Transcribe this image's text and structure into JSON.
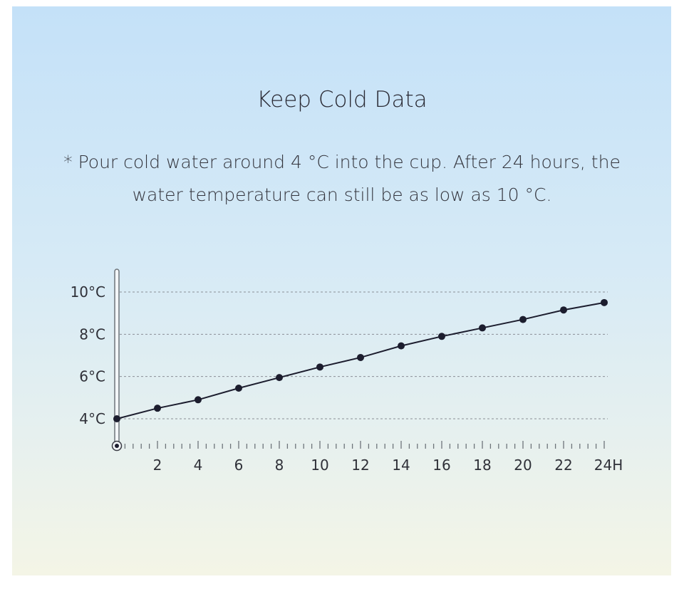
{
  "title": "Keep Cold Data",
  "note": "* Pour cold water around 4 °C into the cup. After 24 hours, the water temperature can still be as low as 10 °C.",
  "colors": {
    "line": "#1c1d2e",
    "grid": "#8a8f96",
    "background_top": "#c4e1f8",
    "background_bottom": "#f4f5e6"
  },
  "chart_data": {
    "type": "line",
    "title": "",
    "xlabel": "",
    "ylabel": "",
    "x": [
      0,
      2,
      4,
      6,
      8,
      10,
      12,
      14,
      16,
      18,
      20,
      22,
      24
    ],
    "series": [
      {
        "values": [
          4.0,
          4.5,
          4.9,
          5.45,
          5.95,
          6.45,
          6.9,
          7.45,
          7.9,
          8.3,
          8.7,
          9.15,
          9.5
        ]
      }
    ],
    "xlim": [
      0,
      24
    ],
    "ylim": [
      3.3,
      11
    ],
    "x_tick_labels": [
      "2",
      "4",
      "6",
      "8",
      "10",
      "12",
      "14",
      "16",
      "18",
      "20",
      "22",
      "24H"
    ],
    "y_tick_values": [
      4,
      6,
      8,
      10
    ],
    "y_tick_labels": [
      "4°C",
      "6°C",
      "8°C",
      "10°C"
    ],
    "grid": "horizontal dashed",
    "legend": "none"
  }
}
